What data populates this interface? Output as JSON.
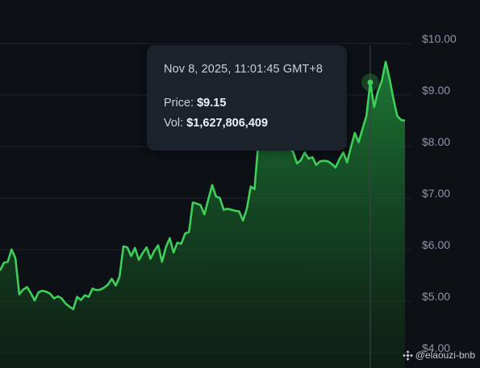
{
  "chart_data": {
    "type": "area",
    "y_axis": {
      "range": [
        4.0,
        10.0
      ],
      "ticks": [
        4,
        5,
        6,
        7,
        8,
        9,
        10
      ],
      "tick_labels": [
        "$4.00",
        "$5.00",
        "$6.00",
        "$7.00",
        "$8.00",
        "$9.00",
        "$10.00"
      ],
      "position": "right",
      "grid": true
    },
    "price_series": [
      5.5,
      5.65,
      5.67,
      5.91,
      5.74,
      5.04,
      5.13,
      5.18,
      5.06,
      4.92,
      5.08,
      5.11,
      5.09,
      5.05,
      4.96,
      5.0,
      4.96,
      4.86,
      4.8,
      4.75,
      4.99,
      4.93,
      5.02,
      4.99,
      5.15,
      5.12,
      5.13,
      5.17,
      5.23,
      5.34,
      5.21,
      5.38,
      5.97,
      5.95,
      5.78,
      5.94,
      5.71,
      5.84,
      5.95,
      5.73,
      5.88,
      5.99,
      5.67,
      5.95,
      6.13,
      5.85,
      6.04,
      6.02,
      6.22,
      6.25,
      6.82,
      6.8,
      6.77,
      6.59,
      6.88,
      7.16,
      6.94,
      6.91,
      6.68,
      6.7,
      6.68,
      6.66,
      6.65,
      6.47,
      6.7,
      7.13,
      7.08,
      8.0,
      7.88,
      8.85,
      8.7,
      8.55,
      8.35,
      8.1,
      7.95,
      7.9,
      7.8,
      7.58,
      7.64,
      7.79,
      7.67,
      7.7,
      7.55,
      7.62,
      7.63,
      7.62,
      7.57,
      7.5,
      7.66,
      7.79,
      7.6,
      7.9,
      8.17,
      7.99,
      8.25,
      8.5,
      9.15,
      8.67,
      8.98,
      9.18,
      9.55,
      9.22,
      8.83,
      8.5,
      8.42,
      8.41
    ],
    "highlight_index": 96,
    "colors": {
      "line": "#3ecf5a",
      "fill": "#1f8a3a",
      "crosshair": "#3a4048",
      "background": "#0d1014",
      "grid": "#1f242b"
    }
  },
  "tooltip": {
    "timestamp": "Nov 8, 2025, 11:01:45 GMT+8",
    "price_label": "Price:",
    "price_value": "$9.15",
    "vol_label": "Vol:",
    "vol_value": "$1,627,806,409"
  },
  "watermark": {
    "text": "@elaouzi-bnb",
    "icon": "binance-logo-icon"
  }
}
